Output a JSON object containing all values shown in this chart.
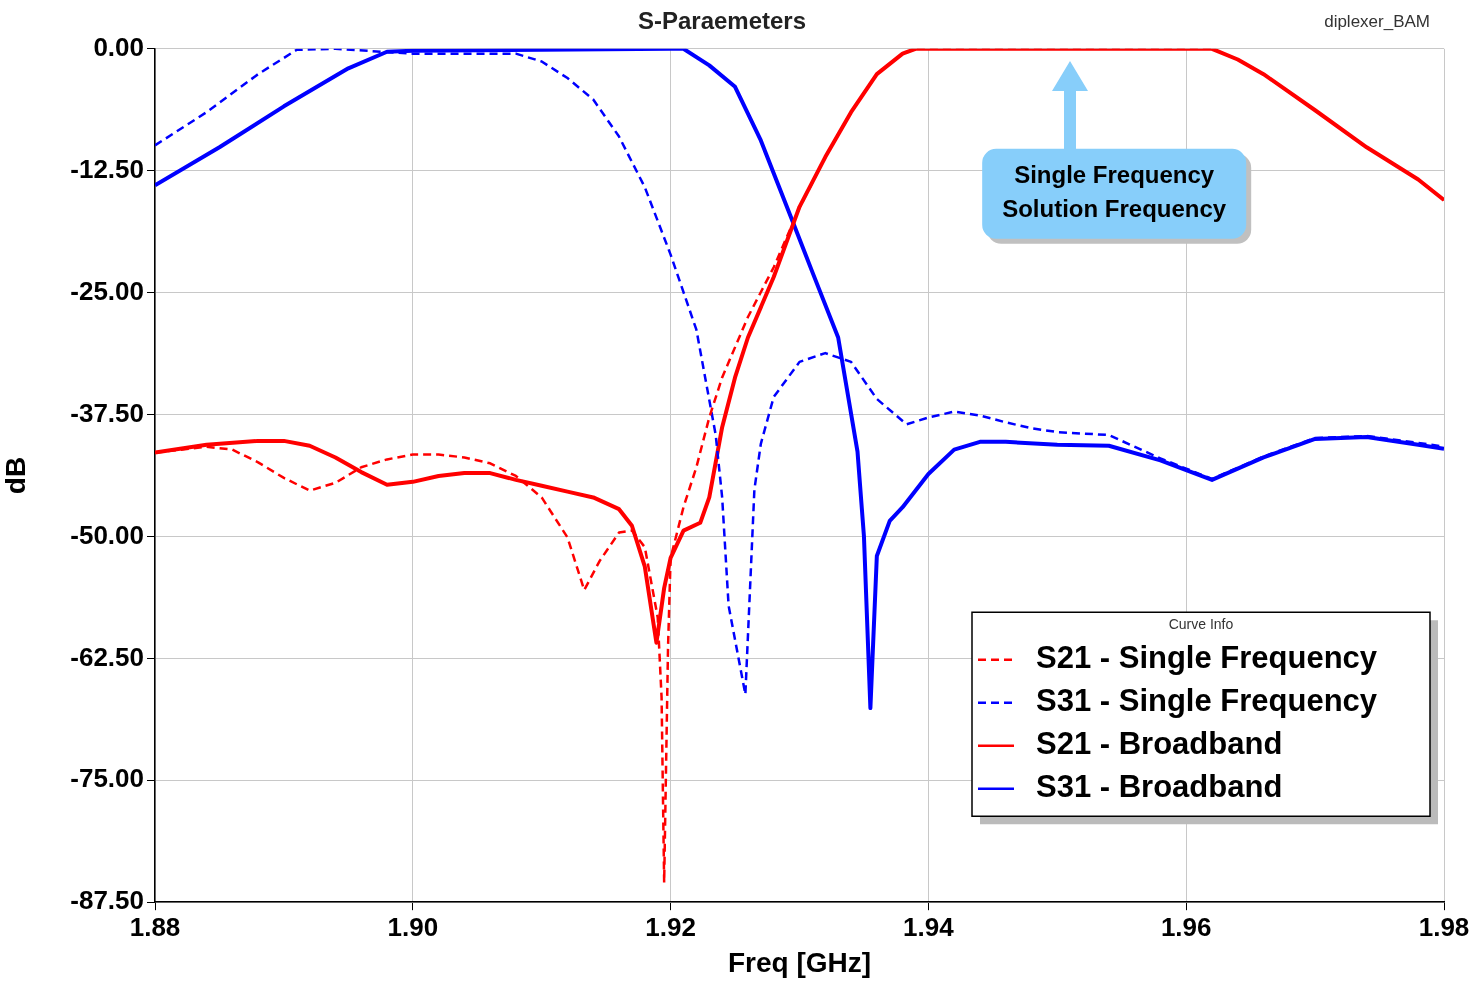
{
  "chart_data": {
    "type": "line",
    "title": "S-Paraemeters",
    "xlabel": "Freq [GHz]",
    "ylabel": "dB",
    "legend_title": "Curve Info",
    "legend": "bottom right",
    "grid": true,
    "xlim": [
      1.88,
      1.98
    ],
    "xticks": [
      {
        "value": 1.88,
        "label": "1.88"
      },
      {
        "value": 1.9,
        "label": "1.90"
      },
      {
        "value": 1.92,
        "label": "1.92"
      },
      {
        "value": 1.94,
        "label": "1.94"
      },
      {
        "value": 1.96,
        "label": "1.96"
      },
      {
        "value": 1.98,
        "label": "1.98"
      }
    ],
    "ylim": [
      -87.5,
      0
    ],
    "yticks": [
      {
        "value": 0,
        "label": "0.00"
      },
      {
        "value": -12.5,
        "label": "-12.50"
      },
      {
        "value": -25,
        "label": "-25.00"
      },
      {
        "value": -37.5,
        "label": "-37.50"
      },
      {
        "value": -50,
        "label": "-50.00"
      },
      {
        "value": -62.5,
        "label": "-62.50"
      },
      {
        "value": -75,
        "label": "-75.00"
      },
      {
        "value": -87.5,
        "label": "-87.50"
      }
    ],
    "annotations": [
      "diplexer_BAM",
      "Single Frequency\nSolution Frequency"
    ],
    "series": [
      {
        "name": "S21 - Single Frequency",
        "color": "#ff0000",
        "line_style": "dashed",
        "x": [
          1.88,
          1.884,
          1.886,
          1.888,
          1.89,
          1.892,
          1.894,
          1.896,
          1.898,
          1.9,
          1.902,
          1.904,
          1.906,
          1.908,
          1.91,
          1.912,
          1.9133,
          1.9145,
          1.916,
          1.917,
          1.918,
          1.919,
          1.9193,
          1.9195,
          1.9198,
          1.92,
          1.921,
          1.922,
          1.923,
          1.924,
          1.926,
          1.928,
          1.93,
          1.932,
          1.934,
          1.936,
          1.938,
          1.939,
          1.962,
          1.964,
          1.966,
          1.97,
          1.974,
          1.978,
          1.98
        ],
        "values": [
          -41.4,
          -40.8,
          -41.1,
          -42.4,
          -44.0,
          -45.3,
          -44.5,
          -42.9,
          -42.1,
          -41.6,
          -41.6,
          -41.9,
          -42.5,
          -43.8,
          -46.0,
          -50.1,
          -55.5,
          -52.5,
          -49.6,
          -49.4,
          -51.1,
          -58.3,
          -66.5,
          -85.5,
          -61.4,
          -52.2,
          -47.0,
          -42.9,
          -37.8,
          -33.7,
          -27.5,
          -22.4,
          -16.3,
          -11.1,
          -6.5,
          -2.6,
          -0.5,
          0,
          0,
          -1.1,
          -2.6,
          -6.3,
          -10.1,
          -13.4,
          -15.5
        ]
      },
      {
        "name": "S31 - Single Frequency",
        "color": "#0000ff",
        "line_style": "dashed",
        "x": [
          1.88,
          1.884,
          1.888,
          1.891,
          1.894,
          1.9,
          1.908,
          1.91,
          1.912,
          1.914,
          1.916,
          1.918,
          1.92,
          1.922,
          1.9235,
          1.924,
          1.9245,
          1.9258,
          1.9265,
          1.927,
          1.928,
          1.93,
          1.932,
          1.934,
          1.936,
          1.9383,
          1.94,
          1.942,
          1.944,
          1.946,
          1.948,
          1.95,
          1.954,
          1.958,
          1.962,
          1.966,
          1.97,
          1.974,
          1.978,
          1.98
        ],
        "values": [
          -9.9,
          -6.5,
          -2.6,
          -0.1,
          0,
          -0.5,
          -0.5,
          -1.3,
          -3.0,
          -5.2,
          -9.0,
          -14.2,
          -21.1,
          -28.8,
          -39.6,
          -46.0,
          -57.1,
          -66.2,
          -45.2,
          -40.5,
          -35.7,
          -32.1,
          -31.2,
          -32.1,
          -35.9,
          -38.5,
          -37.8,
          -37.2,
          -37.6,
          -38.3,
          -38.9,
          -39.3,
          -39.6,
          -42.0,
          -44.1,
          -41.8,
          -39.9,
          -39.7,
          -40.4,
          -40.8
        ]
      },
      {
        "name": "S21 - Broadband",
        "color": "#ff0000",
        "line_style": "solid",
        "x": [
          1.88,
          1.884,
          1.888,
          1.89,
          1.892,
          1.894,
          1.896,
          1.898,
          1.9,
          1.902,
          1.904,
          1.906,
          1.908,
          1.91,
          1.912,
          1.914,
          1.916,
          1.917,
          1.918,
          1.9189,
          1.9195,
          1.92,
          1.921,
          1.9223,
          1.923,
          1.924,
          1.925,
          1.926,
          1.928,
          1.93,
          1.932,
          1.934,
          1.936,
          1.938,
          1.939,
          1.962,
          1.964,
          1.966,
          1.97,
          1.974,
          1.978,
          1.98
        ],
        "values": [
          -41.4,
          -40.6,
          -40.2,
          -40.2,
          -40.7,
          -41.9,
          -43.4,
          -44.7,
          -44.4,
          -43.8,
          -43.5,
          -43.5,
          -44.2,
          -44.8,
          -45.4,
          -46.0,
          -47.2,
          -48.9,
          -53.1,
          -60.9,
          -55.3,
          -52.2,
          -49.4,
          -48.6,
          -46.0,
          -38.8,
          -33.7,
          -29.6,
          -23.4,
          -16.2,
          -11.1,
          -6.5,
          -2.6,
          -0.5,
          0,
          0,
          -1.1,
          -2.6,
          -6.3,
          -10.1,
          -13.4,
          -15.5
        ]
      },
      {
        "name": "S31 - Broadband",
        "color": "#0000ff",
        "line_style": "solid",
        "x": [
          1.88,
          1.885,
          1.89,
          1.895,
          1.898,
          1.9,
          1.92,
          1.921,
          1.923,
          1.925,
          1.927,
          1.9295,
          1.931,
          1.933,
          1.9345,
          1.935,
          1.9355,
          1.936,
          1.937,
          1.938,
          1.94,
          1.942,
          1.944,
          1.946,
          1.95,
          1.954,
          1.958,
          1.962,
          1.966,
          1.97,
          1.974,
          1.978,
          1.98
        ],
        "values": [
          -14.0,
          -10.1,
          -5.9,
          -2.0,
          -0.3,
          -0.2,
          0,
          0,
          -1.7,
          -3.9,
          -9.4,
          -17.8,
          -22.9,
          -29.6,
          -41.3,
          -50.0,
          -67.6,
          -52.0,
          -48.4,
          -47.0,
          -43.6,
          -41.1,
          -40.3,
          -40.3,
          -40.6,
          -40.7,
          -42.2,
          -44.2,
          -41.9,
          -40.0,
          -39.8,
          -40.6,
          -41.0
        ]
      }
    ]
  }
}
